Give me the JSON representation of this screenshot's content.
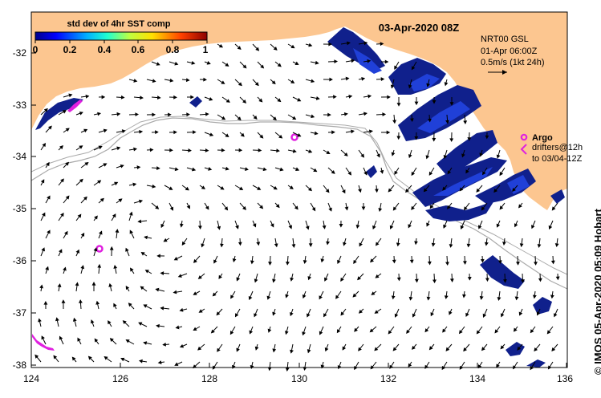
{
  "map": {
    "date_title": "03-Apr-2020 08Z",
    "colorbar": {
      "title": "std dev of 4hr SST comp",
      "ticks": [
        "0",
        "0.2",
        "0.4",
        "0.6",
        "0.8",
        "1"
      ]
    },
    "current_info": {
      "line1": "NRT00 GSL",
      "line2": "01-Apr 06:00Z",
      "line3": "0.5m/s (1kt 24h)"
    },
    "legend": {
      "argo_label": "Argo",
      "drifters_line1": "drifters@12h",
      "drifters_line2": "to 03/04-12Z"
    },
    "credit": "© IMOS 05-Apr-2020 05:09 Hobart",
    "x_ticks": [
      "124",
      "126",
      "128",
      "130",
      "132",
      "134",
      "136"
    ],
    "y_ticks": [
      "-32",
      "-33",
      "-34",
      "-35",
      "-36",
      "-37",
      "-38"
    ],
    "colors": {
      "land": "#fcc690",
      "argo": "#e020e0",
      "shelf_contour": "#aaaaaa",
      "sst_dark": "#10208c",
      "sst_mid": "#2040d8"
    }
  }
}
